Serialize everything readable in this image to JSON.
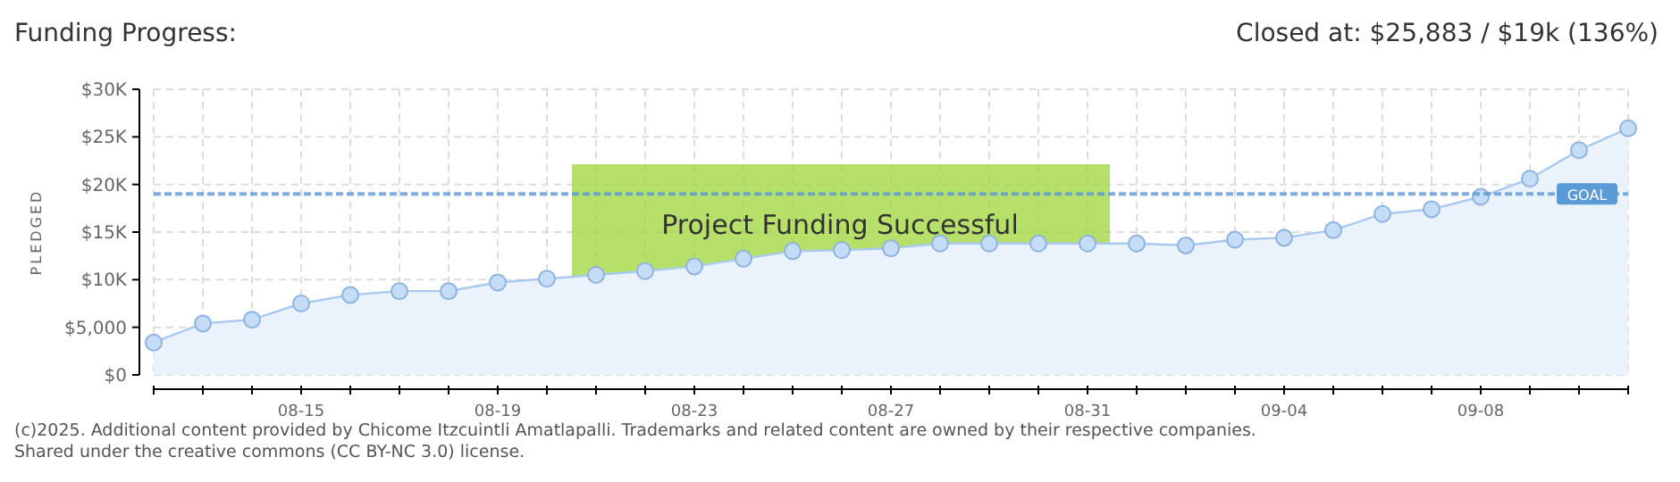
{
  "chart_data": {
    "type": "area",
    "title": "Funding Progress:",
    "subtitle": "Closed at: $25,883 / $19k (136%)",
    "ylabel": "PLEDGED",
    "x": [
      "--08-12",
      "--08-13",
      "--08-14",
      "--08-15",
      "--08-16",
      "--08-17",
      "--08-18",
      "--08-19",
      "--08-20",
      "--08-21",
      "--08-22",
      "--08-23",
      "--08-24",
      "--08-25",
      "--08-26",
      "--08-27",
      "--08-28",
      "--08-29",
      "--08-30",
      "--08-31",
      "--09-01",
      "--09-02",
      "--09-03",
      "--09-04",
      "--09-05",
      "--09-06",
      "--09-07",
      "--09-08",
      "--09-09",
      "--09-10",
      "--09-11"
    ],
    "series": [
      {
        "color": "#a9c9ef",
        "values": [
          3400,
          5400,
          5800,
          7500,
          8400,
          8800,
          8800,
          9700,
          10100,
          10500,
          10900,
          11400,
          12200,
          13000,
          13100,
          13300,
          13800,
          13800,
          13800,
          13800,
          13800,
          13600,
          14200,
          14400,
          15200,
          16900,
          17400,
          18700,
          20600,
          23600,
          25900
        ]
      }
    ],
    "xlim": [
      "--08-12",
      "--09-11"
    ],
    "xticks": [
      {
        "value": "--08-12",
        "label": null
      },
      {
        "value": "--08-13",
        "label": null
      },
      {
        "value": "--08-14",
        "label": null
      },
      {
        "value": "--08-15",
        "label": "08-15"
      },
      {
        "value": "--08-16",
        "label": null
      },
      {
        "value": "--08-17",
        "label": null
      },
      {
        "value": "--08-18",
        "label": null
      },
      {
        "value": "--08-19",
        "label": "08-19"
      },
      {
        "value": "--08-20",
        "label": null
      },
      {
        "value": "--08-21",
        "label": null
      },
      {
        "value": "--08-22",
        "label": null
      },
      {
        "value": "--08-23",
        "label": "08-23"
      },
      {
        "value": "--08-24",
        "label": null
      },
      {
        "value": "--08-25",
        "label": null
      },
      {
        "value": "--08-26",
        "label": null
      },
      {
        "value": "--08-27",
        "label": "08-27"
      },
      {
        "value": "--08-28",
        "label": null
      },
      {
        "value": "--08-29",
        "label": null
      },
      {
        "value": "--08-30",
        "label": null
      },
      {
        "value": "--08-31",
        "label": "08-31"
      },
      {
        "value": "--09-01",
        "label": null
      },
      {
        "value": "--09-02",
        "label": null
      },
      {
        "value": "--09-03",
        "label": null
      },
      {
        "value": "--09-04",
        "label": "09-04"
      },
      {
        "value": "--09-05",
        "label": null
      },
      {
        "value": "--09-06",
        "label": null
      },
      {
        "value": "--09-07",
        "label": null
      },
      {
        "value": "--09-08",
        "label": "09-08"
      },
      {
        "value": "--09-09",
        "label": null
      },
      {
        "value": "--09-10",
        "label": null
      },
      {
        "value": "--09-11",
        "label": null
      }
    ],
    "ylim": [
      0,
      30000
    ],
    "yticks": [
      {
        "value": 0,
        "label": "$0"
      },
      {
        "value": 5000,
        "label": "$5,000"
      },
      {
        "value": 10000,
        "label": "$10K"
      },
      {
        "value": 15000,
        "label": "$15K"
      },
      {
        "value": 20000,
        "label": "$20K"
      },
      {
        "value": 25000,
        "label": "$25K"
      },
      {
        "value": 30000,
        "label": "$30K"
      }
    ],
    "ref_lines": [
      {
        "axis": "y",
        "value": 19000,
        "label": "GOAL",
        "color": "#5b9bd5",
        "line_style": "dashed"
      }
    ],
    "annotations": [
      "Project Funding Successful",
      "(c)2025. Additional content provided by Chicome Itzcuintli Amatlapalli. Trademarks and related content are owned by their respective companies.",
      "Shared under the creative commons (CC BY-NC 3.0) license."
    ],
    "grid": true,
    "marker": "circle"
  }
}
